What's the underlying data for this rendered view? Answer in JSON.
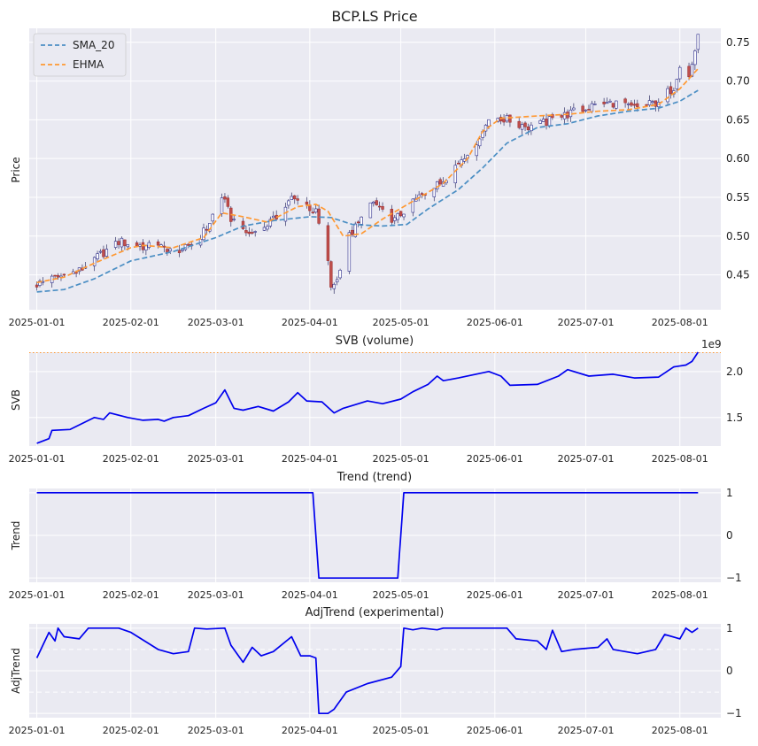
{
  "chart_data": [
    {
      "type": "candlestick",
      "title": "BCP.LS Price",
      "ylabel": "Price",
      "ylim": [
        0.405,
        0.768
      ],
      "yticks": [
        0.45,
        0.5,
        0.55,
        0.6,
        0.65,
        0.7,
        0.75
      ],
      "ytick_labels": [
        "0.45",
        "0.50",
        "0.55",
        "0.60",
        "0.65",
        "0.70",
        "0.75"
      ],
      "xticks": [
        "2025-01-01",
        "2025-02-01",
        "2025-03-01",
        "2025-04-01",
        "2025-05-01",
        "2025-06-01",
        "2025-07-01",
        "2025-08-01"
      ],
      "legend": {
        "position": "top-left",
        "entries": [
          "SMA_20",
          "EHMA"
        ]
      },
      "candle_close_anchors": [
        [
          "2025-01-01",
          0.438
        ],
        [
          "2025-01-08",
          0.447
        ],
        [
          "2025-01-15",
          0.455
        ],
        [
          "2025-01-22",
          0.476
        ],
        [
          "2025-01-28",
          0.493
        ],
        [
          "2025-02-05",
          0.487
        ],
        [
          "2025-02-12",
          0.484
        ],
        [
          "2025-02-20",
          0.483
        ],
        [
          "2025-02-26",
          0.51
        ],
        [
          "2025-03-03",
          0.552
        ],
        [
          "2025-03-06",
          0.523
        ],
        [
          "2025-03-12",
          0.502
        ],
        [
          "2025-03-20",
          0.52
        ],
        [
          "2025-03-26",
          0.548
        ],
        [
          "2025-03-31",
          0.54
        ],
        [
          "2025-04-03",
          0.53
        ],
        [
          "2025-04-07",
          0.47
        ],
        [
          "2025-04-08",
          0.43
        ],
        [
          "2025-04-11",
          0.455
        ],
        [
          "2025-04-14",
          0.5
        ],
        [
          "2025-04-22",
          0.543
        ],
        [
          "2025-04-29",
          0.52
        ],
        [
          "2025-05-05",
          0.545
        ],
        [
          "2025-05-14",
          0.568
        ],
        [
          "2025-05-22",
          0.605
        ],
        [
          "2025-05-27",
          0.625
        ],
        [
          "2025-05-30",
          0.655
        ],
        [
          "2025-06-05",
          0.65
        ],
        [
          "2025-06-13",
          0.64
        ],
        [
          "2025-06-20",
          0.65
        ],
        [
          "2025-06-27",
          0.66
        ],
        [
          "2025-07-03",
          0.668
        ],
        [
          "2025-07-10",
          0.672
        ],
        [
          "2025-07-17",
          0.665
        ],
        [
          "2025-07-24",
          0.672
        ],
        [
          "2025-07-30",
          0.692
        ],
        [
          "2025-08-01",
          0.723
        ],
        [
          "2025-08-04",
          0.705
        ],
        [
          "2025-08-06",
          0.74
        ],
        [
          "2025-08-07",
          0.755
        ]
      ],
      "series": [
        {
          "name": "SMA_20",
          "color": "#4c8fc4",
          "style": "dashed",
          "points": [
            [
              "2025-01-01",
              0.428
            ],
            [
              "2025-01-10",
              0.431
            ],
            [
              "2025-01-20",
              0.445
            ],
            [
              "2025-02-01",
              0.468
            ],
            [
              "2025-02-15",
              0.48
            ],
            [
              "2025-03-01",
              0.498
            ],
            [
              "2025-03-10",
              0.513
            ],
            [
              "2025-03-20",
              0.52
            ],
            [
              "2025-04-01",
              0.525
            ],
            [
              "2025-04-08",
              0.524
            ],
            [
              "2025-04-15",
              0.515
            ],
            [
              "2025-04-25",
              0.513
            ],
            [
              "2025-05-03",
              0.515
            ],
            [
              "2025-05-10",
              0.535
            ],
            [
              "2025-05-20",
              0.56
            ],
            [
              "2025-05-28",
              0.588
            ],
            [
              "2025-06-05",
              0.62
            ],
            [
              "2025-06-15",
              0.64
            ],
            [
              "2025-06-25",
              0.645
            ],
            [
              "2025-07-05",
              0.655
            ],
            [
              "2025-07-15",
              0.661
            ],
            [
              "2025-07-25",
              0.665
            ],
            [
              "2025-08-01",
              0.674
            ],
            [
              "2025-08-07",
              0.688
            ]
          ]
        },
        {
          "name": "EHMA",
          "color": "#ff9933",
          "style": "dashed",
          "points": [
            [
              "2025-01-01",
              0.44
            ],
            [
              "2025-01-10",
              0.447
            ],
            [
              "2025-01-20",
              0.465
            ],
            [
              "2025-02-01",
              0.485
            ],
            [
              "2025-02-05",
              0.488
            ],
            [
              "2025-02-15",
              0.485
            ],
            [
              "2025-02-25",
              0.498
            ],
            [
              "2025-03-03",
              0.53
            ],
            [
              "2025-03-10",
              0.525
            ],
            [
              "2025-03-18",
              0.518
            ],
            [
              "2025-03-28",
              0.538
            ],
            [
              "2025-04-03",
              0.541
            ],
            [
              "2025-04-07",
              0.532
            ],
            [
              "2025-04-12",
              0.5
            ],
            [
              "2025-04-18",
              0.503
            ],
            [
              "2025-04-25",
              0.522
            ],
            [
              "2025-05-05",
              0.545
            ],
            [
              "2025-05-15",
              0.568
            ],
            [
              "2025-05-23",
              0.6
            ],
            [
              "2025-05-28",
              0.635
            ],
            [
              "2025-06-03",
              0.652
            ],
            [
              "2025-06-15",
              0.655
            ],
            [
              "2025-06-25",
              0.657
            ],
            [
              "2025-07-05",
              0.661
            ],
            [
              "2025-07-15",
              0.663
            ],
            [
              "2025-07-25",
              0.67
            ],
            [
              "2025-08-01",
              0.69
            ],
            [
              "2025-08-07",
              0.716
            ]
          ]
        }
      ]
    },
    {
      "type": "line",
      "title": "SVB (volume)",
      "ylabel": "SVB",
      "offset_text": "1e9",
      "ylim": [
        1.19,
        2.21
      ],
      "yticks": [
        1.5,
        2.0
      ],
      "ytick_labels": [
        "1.5",
        "2.0"
      ],
      "reference_line": {
        "value": 2.21,
        "color": "#ff9933",
        "style": "dotted"
      },
      "xticks": [
        "2025-01-01",
        "2025-02-01",
        "2025-03-01",
        "2025-04-01",
        "2025-05-01",
        "2025-06-01",
        "2025-07-01",
        "2025-08-01"
      ],
      "series": [
        {
          "name": "",
          "color": "#0000ee",
          "points": [
            [
              "2025-01-01",
              1.22
            ],
            [
              "2025-01-05",
              1.27
            ],
            [
              "2025-01-06",
              1.36
            ],
            [
              "2025-01-12",
              1.37
            ],
            [
              "2025-01-20",
              1.5
            ],
            [
              "2025-01-23",
              1.48
            ],
            [
              "2025-01-25",
              1.55
            ],
            [
              "2025-01-31",
              1.5
            ],
            [
              "2025-02-05",
              1.47
            ],
            [
              "2025-02-10",
              1.48
            ],
            [
              "2025-02-12",
              1.46
            ],
            [
              "2025-02-15",
              1.5
            ],
            [
              "2025-02-20",
              1.52
            ],
            [
              "2025-02-25",
              1.6
            ],
            [
              "2025-03-01",
              1.66
            ],
            [
              "2025-03-04",
              1.8
            ],
            [
              "2025-03-07",
              1.6
            ],
            [
              "2025-03-10",
              1.58
            ],
            [
              "2025-03-15",
              1.62
            ],
            [
              "2025-03-20",
              1.57
            ],
            [
              "2025-03-25",
              1.67
            ],
            [
              "2025-03-28",
              1.77
            ],
            [
              "2025-03-31",
              1.68
            ],
            [
              "2025-04-05",
              1.67
            ],
            [
              "2025-04-09",
              1.55
            ],
            [
              "2025-04-12",
              1.6
            ],
            [
              "2025-04-15",
              1.63
            ],
            [
              "2025-04-20",
              1.68
            ],
            [
              "2025-04-25",
              1.65
            ],
            [
              "2025-05-01",
              1.7
            ],
            [
              "2025-05-05",
              1.78
            ],
            [
              "2025-05-10",
              1.86
            ],
            [
              "2025-05-13",
              1.95
            ],
            [
              "2025-05-15",
              1.9
            ],
            [
              "2025-05-20",
              1.93
            ],
            [
              "2025-05-30",
              2.0
            ],
            [
              "2025-06-03",
              1.95
            ],
            [
              "2025-06-06",
              1.85
            ],
            [
              "2025-06-15",
              1.86
            ],
            [
              "2025-06-22",
              1.95
            ],
            [
              "2025-06-25",
              2.02
            ],
            [
              "2025-07-02",
              1.95
            ],
            [
              "2025-07-10",
              1.97
            ],
            [
              "2025-07-17",
              1.93
            ],
            [
              "2025-07-25",
              1.94
            ],
            [
              "2025-07-30",
              2.05
            ],
            [
              "2025-08-03",
              2.07
            ],
            [
              "2025-08-05",
              2.11
            ],
            [
              "2025-08-07",
              2.21
            ]
          ]
        }
      ]
    },
    {
      "type": "line",
      "title": "Trend (trend)",
      "ylabel": "Trend",
      "ylim": [
        -1.1,
        1.1
      ],
      "yticks": [
        -1,
        0,
        1
      ],
      "ytick_labels": [
        "−1",
        "0",
        "1"
      ],
      "xticks": [
        "2025-01-01",
        "2025-02-01",
        "2025-03-01",
        "2025-04-01",
        "2025-05-01",
        "2025-06-01",
        "2025-07-01",
        "2025-08-01"
      ],
      "series": [
        {
          "name": "",
          "color": "#0000ee",
          "points": [
            [
              "2025-01-01",
              1
            ],
            [
              "2025-04-02",
              1
            ],
            [
              "2025-04-04",
              -1
            ],
            [
              "2025-04-30",
              -1
            ],
            [
              "2025-05-02",
              1
            ],
            [
              "2025-08-07",
              1
            ]
          ]
        }
      ]
    },
    {
      "type": "line",
      "title": "AdjTrend (experimental)",
      "ylabel": "AdjTrend",
      "ylim": [
        -1.1,
        1.1
      ],
      "yticks": [
        -1,
        0,
        1
      ],
      "ytick_labels": [
        "−1",
        "0",
        "1"
      ],
      "reference_lines": [
        0.5,
        -0.5
      ],
      "xticks": [
        "2025-01-01",
        "2025-02-01",
        "2025-03-01",
        "2025-04-01",
        "2025-05-01",
        "2025-06-01",
        "2025-07-01",
        "2025-08-01"
      ],
      "series": [
        {
          "name": "",
          "color": "#0000ee",
          "points": [
            [
              "2025-01-01",
              0.3
            ],
            [
              "2025-01-03",
              0.6
            ],
            [
              "2025-01-05",
              0.9
            ],
            [
              "2025-01-07",
              0.7
            ],
            [
              "2025-01-08",
              1.0
            ],
            [
              "2025-01-10",
              0.8
            ],
            [
              "2025-01-15",
              0.75
            ],
            [
              "2025-01-18",
              1.0
            ],
            [
              "2025-01-28",
              1.0
            ],
            [
              "2025-02-01",
              0.9
            ],
            [
              "2025-02-10",
              0.5
            ],
            [
              "2025-02-15",
              0.4
            ],
            [
              "2025-02-20",
              0.45
            ],
            [
              "2025-02-22",
              1.0
            ],
            [
              "2025-02-26",
              0.98
            ],
            [
              "2025-03-04",
              1.0
            ],
            [
              "2025-03-06",
              0.6
            ],
            [
              "2025-03-10",
              0.2
            ],
            [
              "2025-03-13",
              0.55
            ],
            [
              "2025-03-16",
              0.35
            ],
            [
              "2025-03-20",
              0.45
            ],
            [
              "2025-03-26",
              0.8
            ],
            [
              "2025-03-29",
              0.35
            ],
            [
              "2025-04-01",
              0.35
            ],
            [
              "2025-04-03",
              0.3
            ],
            [
              "2025-04-04",
              -1.0
            ],
            [
              "2025-04-07",
              -1.0
            ],
            [
              "2025-04-09",
              -0.9
            ],
            [
              "2025-04-13",
              -0.5
            ],
            [
              "2025-04-20",
              -0.3
            ],
            [
              "2025-04-28",
              -0.15
            ],
            [
              "2025-05-01",
              0.1
            ],
            [
              "2025-05-02",
              1.0
            ],
            [
              "2025-05-05",
              0.96
            ],
            [
              "2025-05-08",
              1.0
            ],
            [
              "2025-05-13",
              0.96
            ],
            [
              "2025-05-15",
              1.0
            ],
            [
              "2025-06-05",
              1.0
            ],
            [
              "2025-06-08",
              0.75
            ],
            [
              "2025-06-15",
              0.7
            ],
            [
              "2025-06-18",
              0.5
            ],
            [
              "2025-06-20",
              0.95
            ],
            [
              "2025-06-23",
              0.45
            ],
            [
              "2025-06-27",
              0.5
            ],
            [
              "2025-07-05",
              0.55
            ],
            [
              "2025-07-08",
              0.75
            ],
            [
              "2025-07-10",
              0.5
            ],
            [
              "2025-07-18",
              0.4
            ],
            [
              "2025-07-24",
              0.5
            ],
            [
              "2025-07-27",
              0.85
            ],
            [
              "2025-08-01",
              0.75
            ],
            [
              "2025-08-03",
              1.0
            ],
            [
              "2025-08-05",
              0.9
            ],
            [
              "2025-08-07",
              1.0
            ]
          ]
        }
      ]
    }
  ]
}
